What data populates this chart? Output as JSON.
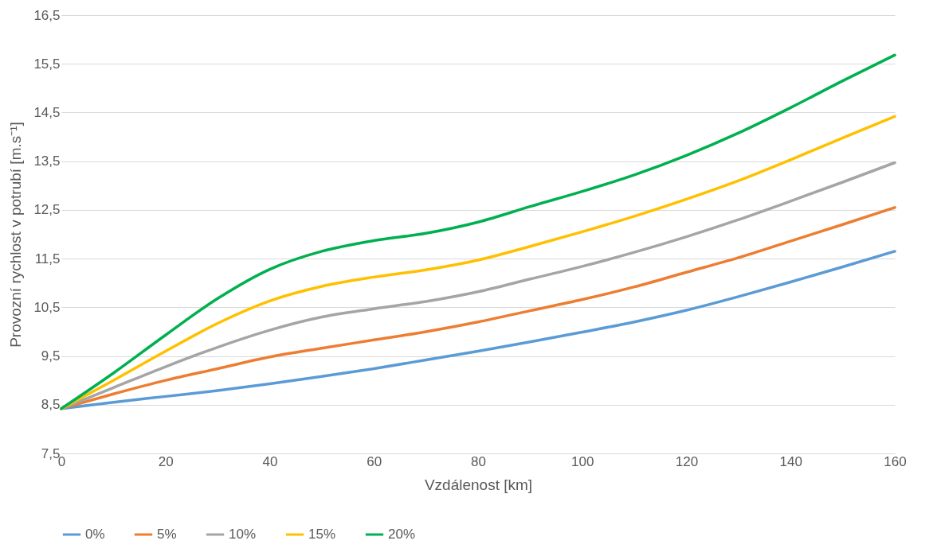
{
  "chart_data": {
    "type": "line",
    "xlabel": "Vzdálenost [km]",
    "ylabel": "Provozní rychlost v potrubí [m.s⁻¹]",
    "x": [
      0,
      10,
      20,
      30,
      40,
      50,
      60,
      70,
      80,
      90,
      100,
      110,
      120,
      130,
      140,
      150,
      160
    ],
    "series": [
      {
        "name": "0%",
        "color": "#5b9bd5",
        "values": [
          8.42,
          8.55,
          8.67,
          8.79,
          8.93,
          9.08,
          9.24,
          9.42,
          9.6,
          9.79,
          9.99,
          10.2,
          10.44,
          10.72,
          11.02,
          11.33,
          11.65
        ]
      },
      {
        "name": "5%",
        "color": "#ed7d31",
        "values": [
          8.42,
          8.72,
          9.0,
          9.24,
          9.48,
          9.66,
          9.83,
          10.0,
          10.2,
          10.43,
          10.66,
          10.92,
          11.22,
          11.52,
          11.86,
          12.2,
          12.55
        ]
      },
      {
        "name": "10%",
        "color": "#a5a5a5",
        "values": [
          8.42,
          8.85,
          9.28,
          9.68,
          10.03,
          10.3,
          10.47,
          10.62,
          10.82,
          11.08,
          11.34,
          11.63,
          11.95,
          12.3,
          12.68,
          13.07,
          13.47
        ]
      },
      {
        "name": "15%",
        "color": "#ffc000",
        "values": [
          8.42,
          9.0,
          9.6,
          10.17,
          10.63,
          10.93,
          11.12,
          11.27,
          11.47,
          11.75,
          12.05,
          12.37,
          12.72,
          13.1,
          13.53,
          13.98,
          14.42
        ]
      },
      {
        "name": "20%",
        "color": "#00b050",
        "values": [
          8.42,
          9.15,
          9.93,
          10.68,
          11.28,
          11.65,
          11.87,
          12.02,
          12.25,
          12.57,
          12.88,
          13.22,
          13.62,
          14.08,
          14.6,
          15.15,
          15.68
        ]
      }
    ],
    "xlim": [
      0,
      160
    ],
    "xticks": [
      0,
      20,
      40,
      60,
      80,
      100,
      120,
      140,
      160
    ],
    "ylim": [
      7.5,
      16.5
    ],
    "yticks": [
      {
        "value": 7.5,
        "label": "7,5"
      },
      {
        "value": 8.5,
        "label": "8,5"
      },
      {
        "value": 9.5,
        "label": "9,5"
      },
      {
        "value": 10.5,
        "label": "10,5"
      },
      {
        "value": 11.5,
        "label": "11,5"
      },
      {
        "value": 12.5,
        "label": "12,5"
      },
      {
        "value": 13.5,
        "label": "13,5"
      },
      {
        "value": 14.5,
        "label": "14,5"
      },
      {
        "value": 15.5,
        "label": "15,5"
      },
      {
        "value": 16.5,
        "label": "16,5"
      }
    ],
    "grid": "y",
    "legend": "bottom",
    "marker": "none",
    "line_style": "solid"
  }
}
